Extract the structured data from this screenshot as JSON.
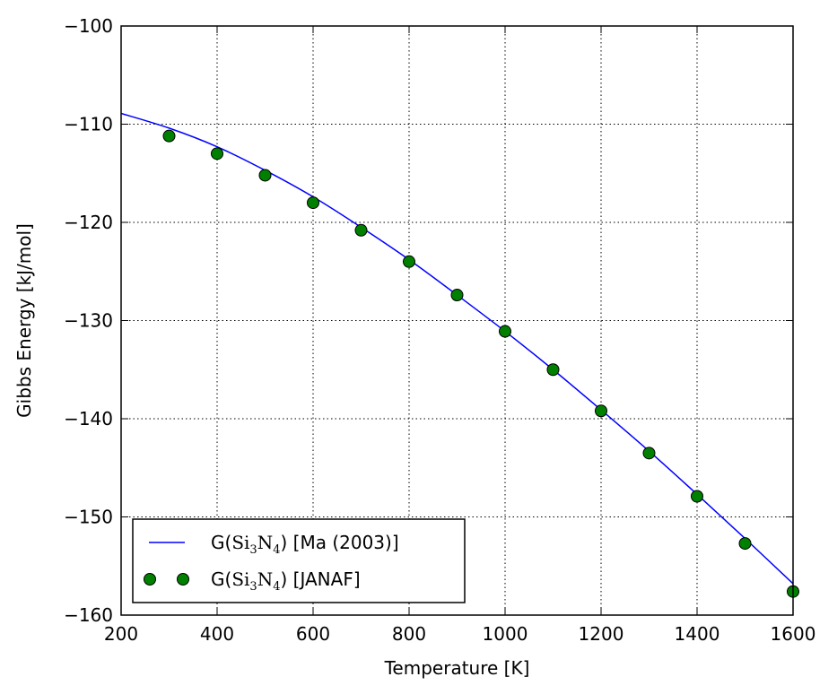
{
  "chart_data": {
    "type": "line",
    "xlabel": "Temperature [K]",
    "ylabel": "Gibbs Energy [kJ/mol]",
    "xlim": [
      200,
      1600
    ],
    "ylim": [
      -160,
      -100
    ],
    "xticks": [
      200,
      400,
      600,
      800,
      1000,
      1200,
      1400,
      1600
    ],
    "yticks": [
      -160,
      -150,
      -140,
      -130,
      -120,
      -110,
      -100
    ],
    "x_tick_labels": [
      "200",
      "400",
      "600",
      "800",
      "1000",
      "1200",
      "1400",
      "1600"
    ],
    "y_tick_labels": [
      "−160",
      "−150",
      "−140",
      "−130",
      "−120",
      "−110",
      "−100"
    ],
    "grid": true,
    "legend_position": "lower-left",
    "series": [
      {
        "name": "G(Si3N4) [Ma (2003)]",
        "style": "line",
        "color": "#0000ff",
        "x": [
          200,
          300,
          400,
          500,
          600,
          700,
          800,
          900,
          1000,
          1100,
          1200,
          1300,
          1400,
          1500,
          1600
        ],
        "y": [
          -108.9,
          -110.4,
          -112.3,
          -114.7,
          -117.4,
          -120.5,
          -123.8,
          -127.4,
          -131.1,
          -135.0,
          -139.1,
          -143.3,
          -147.7,
          -152.2,
          -156.8
        ]
      },
      {
        "name": "G(Si3N4) [JANAF]",
        "style": "markers",
        "color": "#008000",
        "x": [
          300,
          400,
          500,
          600,
          700,
          800,
          900,
          1000,
          1100,
          1200,
          1300,
          1400,
          1500,
          1600
        ],
        "y": [
          -111.2,
          -113.0,
          -115.2,
          -118.0,
          -120.8,
          -124.0,
          -127.4,
          -131.1,
          -135.0,
          -139.2,
          -143.5,
          -147.9,
          -152.7,
          -157.6
        ]
      }
    ],
    "legend": [
      {
        "prefix": "G(",
        "base1": "Si",
        "sub1": "3",
        "base2": "N",
        "sub2": "4",
        "suffix": ") [Ma (2003)]"
      },
      {
        "prefix": "G(",
        "base1": "Si",
        "sub1": "3",
        "base2": "N",
        "sub2": "4",
        "suffix": ") [JANAF]"
      }
    ]
  }
}
